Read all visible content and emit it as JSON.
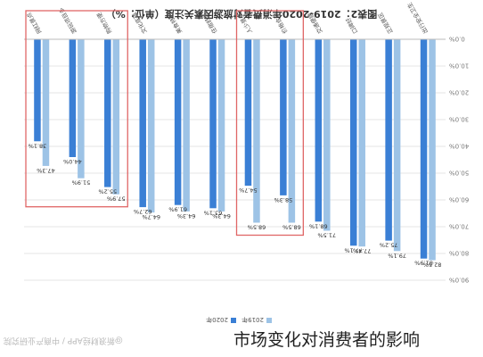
{
  "chart_data": {
    "type": "bar",
    "title": "图表2：2019-2020年消费者对旅游因素关注度（单位：%）",
    "categories": [
      "出行安全卫生",
      "正规景区",
      "口碑好",
      "交通便捷",
      "价格合适",
      "人少景美",
      "住宿舒适",
      "美食特色",
      "文化底蕴",
      "购物方便",
      "游玩项目多",
      "网红景点"
    ],
    "series": [
      {
        "name": "2019年",
        "color": "#9dc3e6",
        "values": [
          82.5,
          79.1,
          77.4,
          71.5,
          68.5,
          68.5,
          64.3,
          64.3,
          64.7,
          57.9,
          51.9,
          47.3
        ]
      },
      {
        "name": "2020年",
        "color": "#3a7fd5",
        "values": [
          81.9,
          75.2,
          77.1,
          68.1,
          58.3,
          54.7,
          63.1,
          61.9,
          62.7,
          55.2,
          44.0,
          38.1
        ]
      }
    ],
    "data_labels_2019": [
      "82.5%",
      "79.1%",
      "77.4%",
      "71.5%",
      "68.5%",
      "68.5%",
      "64.3%",
      "64.3%",
      "64.7%",
      "57.9%",
      "51.9%",
      "47.3%"
    ],
    "data_labels_2020": [
      "81.9%",
      "75.2%",
      "77.1%",
      "68.1%",
      "58.3%",
      "54.7%",
      "63.1%",
      "61.9%",
      "62.7%",
      "55.2%",
      "44.0%",
      "38.1%"
    ],
    "y_ticks": [
      "0.0%",
      "10.0%",
      "20.0%",
      "30.0%",
      "40.0%",
      "50.0%",
      "60.0%",
      "70.0%",
      "80.0%",
      "90.0%"
    ],
    "ylim": [
      0,
      90
    ],
    "grid": true,
    "legend_position": "bottom",
    "highlight_boxes": [
      {
        "categories": [
          9,
          11
        ],
        "color": "#e06666"
      },
      {
        "categories": [
          4,
          5
        ],
        "color": "#e06666"
      }
    ],
    "orientation_note": "image rotated 180 degrees"
  },
  "caption": "市场变化对消费者的影响",
  "watermark": "@新浪财经APP / 中商产业研究院"
}
